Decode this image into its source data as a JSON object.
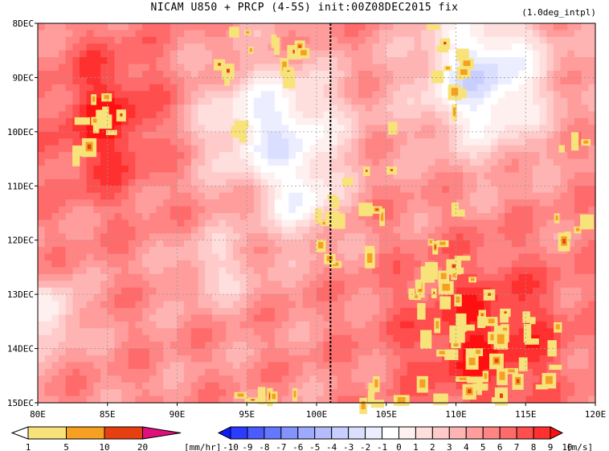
{
  "title": "NICAM   U850 + PRCP (4-5S) init:00Z08DEC2015 fix",
  "subtitle": "(1.0deg_intpl)",
  "chart_data": {
    "type": "heatmap",
    "description_fields": "Hovmoller: longitude (x) vs time (y), shaded U850 wind and precipitation",
    "x_axis": {
      "range": [
        80,
        120
      ],
      "ticks": [
        "80E",
        "85E",
        "90E",
        "95E",
        "100E",
        "105E",
        "110E",
        "115E",
        "120E"
      ]
    },
    "y_axis": {
      "range_days": [
        "8DEC",
        "15DEC"
      ],
      "ticks": [
        "8DEC",
        "9DEC",
        "10DEC",
        "11DEC",
        "12DEC",
        "13DEC",
        "14DEC",
        "15DEC"
      ]
    },
    "reference_line": {
      "longitude": 101,
      "style": "dashed"
    },
    "precip_colorbar": {
      "labels": [
        "1",
        "5",
        "10",
        "20"
      ],
      "unit": "[mm/hr]",
      "colors": [
        "#ffffff",
        "#f8e27a",
        "#f5a020",
        "#e64010",
        "#e0107a"
      ]
    },
    "wind_colorbar": {
      "labels": [
        "-10",
        "-9",
        "-8",
        "-7",
        "-6",
        "-5",
        "-4",
        "-3",
        "-2",
        "-1",
        "0",
        "1",
        "2",
        "3",
        "4",
        "5",
        "6",
        "7",
        "8",
        "9",
        "10"
      ],
      "unit": "[m/s]",
      "colors": [
        "#0a1aff",
        "#2a3cff",
        "#4a5bff",
        "#6677ff",
        "#8494ff",
        "#9eaaff",
        "#b4bcff",
        "#c8ceff",
        "#dadeff",
        "#eceeff",
        "#ffffff",
        "#fff0f0",
        "#ffdede",
        "#ffcaca",
        "#ffb4b4",
        "#ff9c9c",
        "#ff8484",
        "#ff6a6a",
        "#ff4e4e",
        "#ff3030",
        "#ff1010"
      ]
    }
  }
}
